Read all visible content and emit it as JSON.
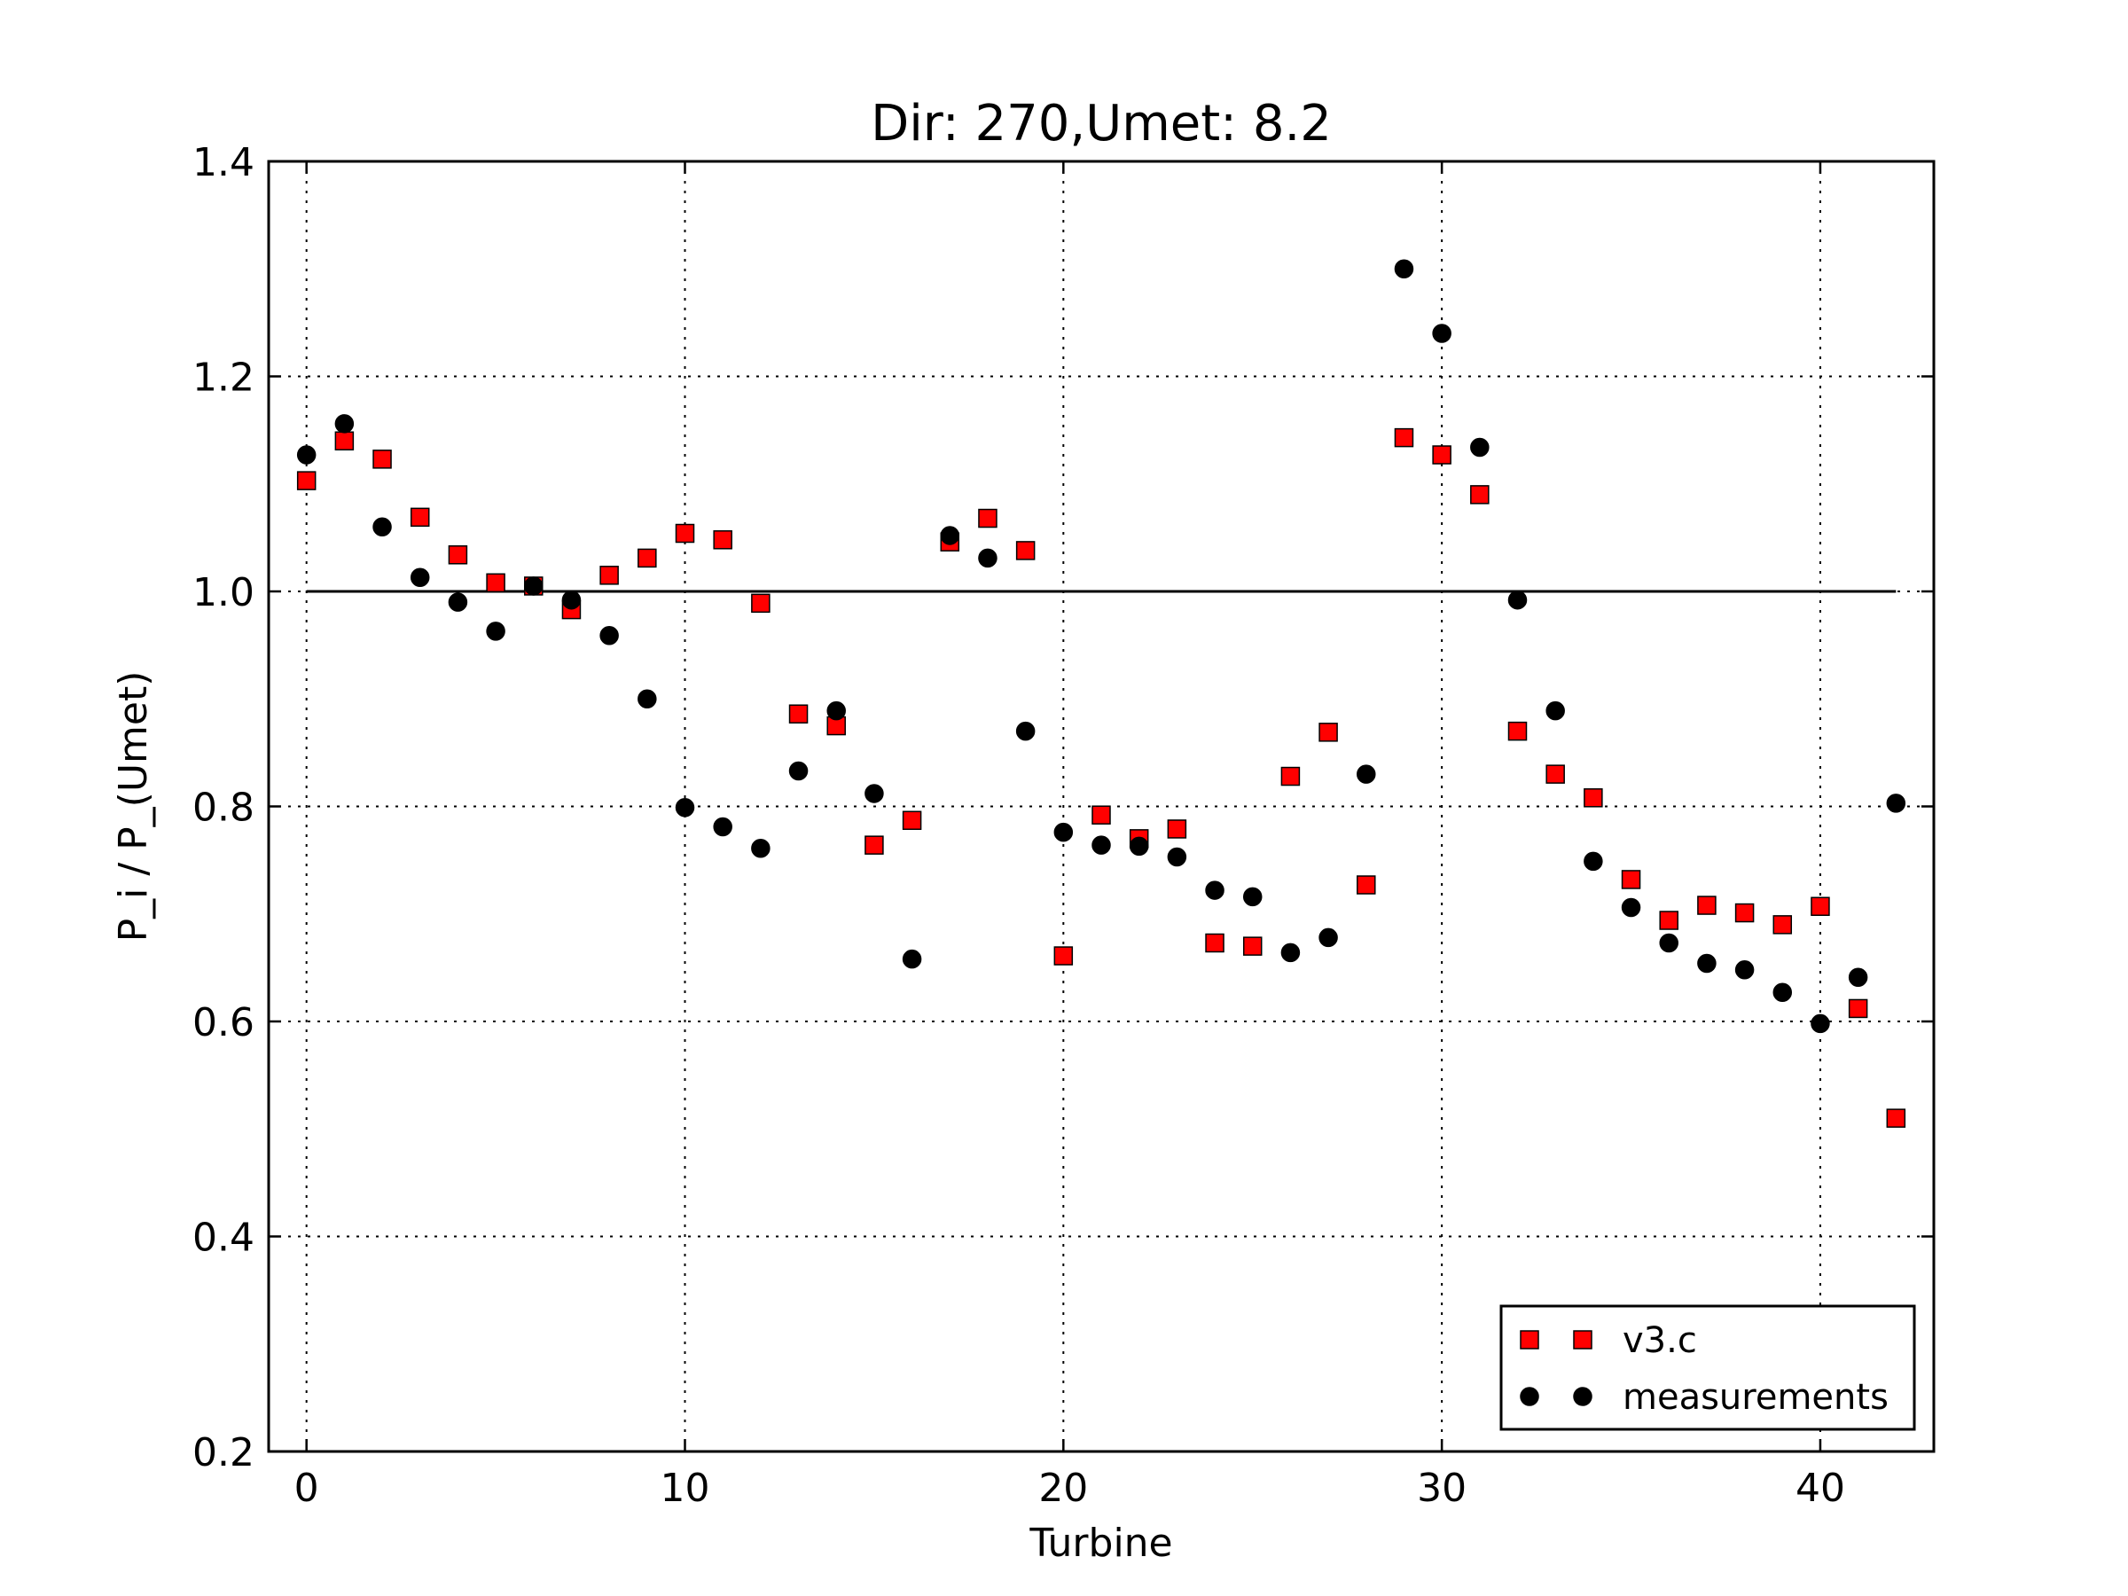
{
  "chart_data": {
    "type": "scatter",
    "title": "Dir: 270,Umet: 8.2",
    "xlabel": "Turbine",
    "ylabel": "P_i / P_(Umet)",
    "xlim": [
      -1,
      43
    ],
    "ylim": [
      0.2,
      1.4
    ],
    "xticks": [
      "0",
      "10",
      "20",
      "30",
      "40"
    ],
    "yticks": [
      "0.2",
      "0.4",
      "0.6",
      "0.8",
      "1.0",
      "1.2",
      "1.4"
    ],
    "grid": true,
    "legend_position": "lower-right",
    "reference_line": {
      "y": 1.0,
      "x_range": [
        0,
        42
      ],
      "color": "#000000"
    },
    "series": [
      {
        "name": "v3.c",
        "marker": "square",
        "color": "#ff0000",
        "x": [
          0,
          1,
          2,
          3,
          4,
          5,
          6,
          7,
          8,
          9,
          10,
          11,
          12,
          13,
          14,
          15,
          16,
          17,
          18,
          19,
          20,
          21,
          22,
          23,
          24,
          25,
          26,
          27,
          28,
          29,
          30,
          31,
          32,
          33,
          34,
          35,
          36,
          37,
          38,
          39,
          40,
          41,
          42
        ],
        "y": [
          1.103,
          1.14,
          1.123,
          1.069,
          1.034,
          1.008,
          1.005,
          0.983,
          1.015,
          1.031,
          1.054,
          1.048,
          0.989,
          0.886,
          0.875,
          0.764,
          0.787,
          1.046,
          1.068,
          1.038,
          0.661,
          0.792,
          0.77,
          0.779,
          0.673,
          0.67,
          0.828,
          0.869,
          0.727,
          1.143,
          1.127,
          1.09,
          0.87,
          0.83,
          0.808,
          0.732,
          0.694,
          0.708,
          0.701,
          0.69,
          0.707,
          0.612,
          0.51
        ]
      },
      {
        "name": "measurements",
        "marker": "circle",
        "color": "#000000",
        "x": [
          0,
          1,
          2,
          3,
          4,
          5,
          6,
          7,
          8,
          9,
          10,
          11,
          12,
          13,
          14,
          15,
          16,
          17,
          18,
          19,
          20,
          21,
          22,
          23,
          24,
          25,
          26,
          27,
          28,
          29,
          30,
          31,
          32,
          33,
          34,
          35,
          36,
          37,
          38,
          39,
          40,
          41,
          42
        ],
        "y": [
          1.127,
          1.156,
          1.06,
          1.013,
          0.99,
          0.963,
          1.005,
          0.992,
          0.959,
          0.9,
          0.799,
          0.781,
          0.761,
          0.833,
          0.889,
          0.812,
          0.658,
          1.052,
          1.031,
          0.87,
          0.776,
          0.764,
          0.763,
          0.753,
          0.722,
          0.716,
          0.664,
          0.678,
          0.83,
          1.3,
          1.24,
          1.134,
          0.992,
          0.889,
          0.749,
          0.706,
          0.673,
          0.654,
          0.648,
          0.627,
          0.598,
          0.641,
          0.803
        ]
      }
    ]
  }
}
